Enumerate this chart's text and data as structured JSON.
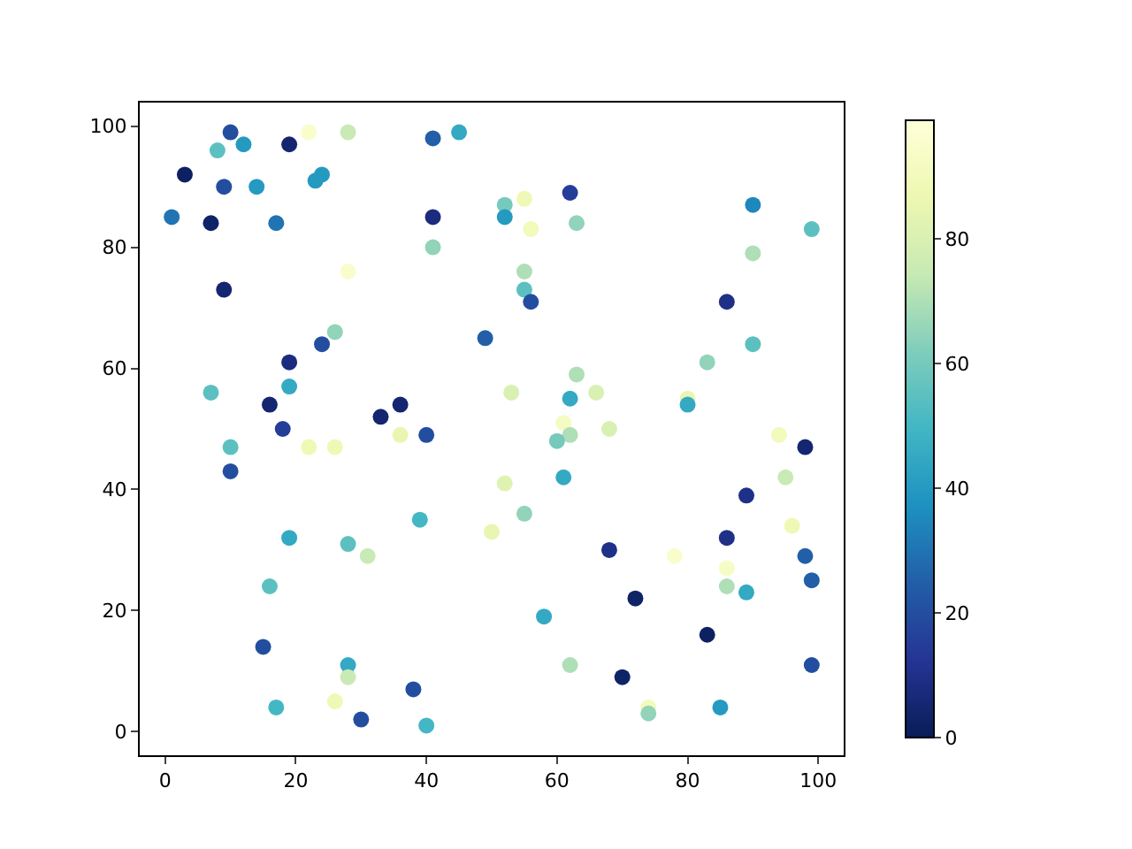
{
  "chart_data": {
    "type": "scatter",
    "marker": "circle",
    "grid": false,
    "legend": false,
    "x": [
      10,
      22,
      28,
      12,
      8,
      19,
      3,
      24,
      23,
      9,
      14,
      1,
      7,
      17,
      41,
      45,
      41,
      41,
      28,
      9,
      26,
      24,
      19,
      7,
      19,
      16,
      36,
      33,
      18,
      40,
      36,
      10,
      22,
      26,
      10,
      19,
      28,
      31,
      39,
      16,
      15,
      28,
      28,
      17,
      26,
      30,
      38,
      40,
      52,
      55,
      52,
      56,
      62,
      63,
      55,
      55,
      56,
      49,
      90,
      99,
      90,
      86,
      83,
      90,
      63,
      53,
      66,
      62,
      80,
      80,
      61,
      62,
      60,
      68,
      94,
      98,
      52,
      61,
      95,
      89,
      55,
      50,
      96,
      86,
      68,
      98,
      78,
      86,
      99,
      86,
      89,
      72,
      58,
      83,
      62,
      99,
      70,
      74,
      74,
      85
    ],
    "values": [
      99,
      99,
      99,
      97,
      96,
      97,
      92,
      92,
      91,
      90,
      90,
      85,
      84,
      84,
      98,
      99,
      85,
      80,
      76,
      73,
      66,
      64,
      61,
      56,
      57,
      54,
      54,
      52,
      50,
      49,
      49,
      47,
      47,
      47,
      43,
      32,
      31,
      29,
      35,
      24,
      14,
      11,
      9,
      4,
      5,
      2,
      7,
      1,
      87,
      88,
      85,
      83,
      89,
      84,
      76,
      73,
      71,
      65,
      87,
      83,
      79,
      71,
      61,
      64,
      59,
      56,
      56,
      55,
      55,
      54,
      51,
      49,
      48,
      50,
      49,
      47,
      41,
      42,
      42,
      39,
      36,
      33,
      34,
      32,
      30,
      29,
      29,
      27,
      25,
      24,
      23,
      22,
      19,
      16,
      11,
      11,
      9,
      4,
      3,
      4
    ],
    "cvalues": [
      20,
      95,
      75,
      40,
      55,
      5,
      2,
      40,
      40,
      20,
      40,
      30,
      3,
      30,
      25,
      45,
      8,
      65,
      95,
      5,
      65,
      20,
      8,
      55,
      45,
      5,
      5,
      5,
      15,
      20,
      85,
      55,
      88,
      88,
      20,
      45,
      55,
      75,
      50,
      55,
      20,
      45,
      75,
      50,
      88,
      20,
      20,
      50,
      60,
      88,
      40,
      90,
      15,
      65,
      70,
      55,
      20,
      25,
      35,
      55,
      70,
      10,
      65,
      55,
      70,
      80,
      80,
      45,
      85,
      45,
      92,
      70,
      60,
      80,
      90,
      5,
      82,
      45,
      75,
      10,
      65,
      85,
      88,
      10,
      10,
      25,
      95,
      93,
      25,
      70,
      45,
      3,
      45,
      2,
      70,
      20,
      3,
      90,
      65,
      40
    ],
    "xlim": [
      -3.9,
      103.9
    ],
    "ylim": [
      -3.9,
      103.9
    ],
    "xticks": [
      0,
      20,
      40,
      60,
      80,
      100
    ],
    "yticks": [
      0,
      20,
      40,
      60,
      80,
      100
    ],
    "clim": [
      0,
      99
    ],
    "cticks": [
      0,
      20,
      40,
      60,
      80
    ]
  }
}
